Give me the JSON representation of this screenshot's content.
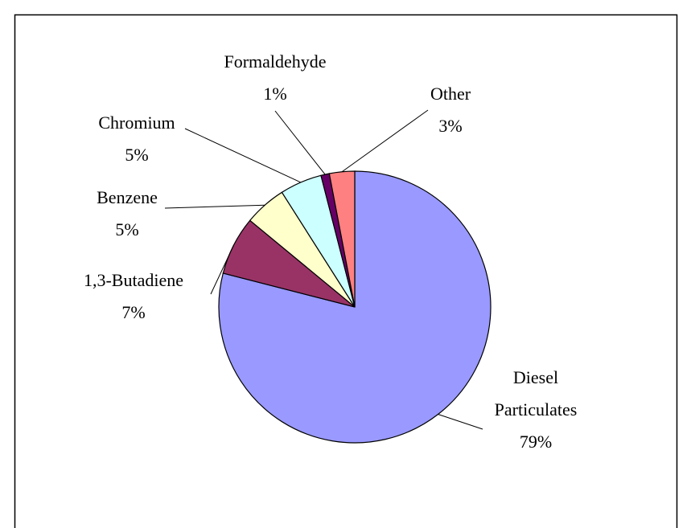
{
  "chart_data": {
    "type": "pie",
    "categories": [
      "Diesel Particulates",
      "1,3-Butadiene",
      "Benzene",
      "Chromium",
      "Formaldehyde",
      "Other"
    ],
    "values": [
      79,
      7,
      5,
      5,
      1,
      3
    ],
    "value_labels": [
      "79%",
      "7%",
      "5%",
      "5%",
      "1%",
      "3%"
    ],
    "colors": [
      "#9999ff",
      "#993366",
      "#ffffcc",
      "#ccffff",
      "#660066",
      "#ff8080"
    ]
  }
}
